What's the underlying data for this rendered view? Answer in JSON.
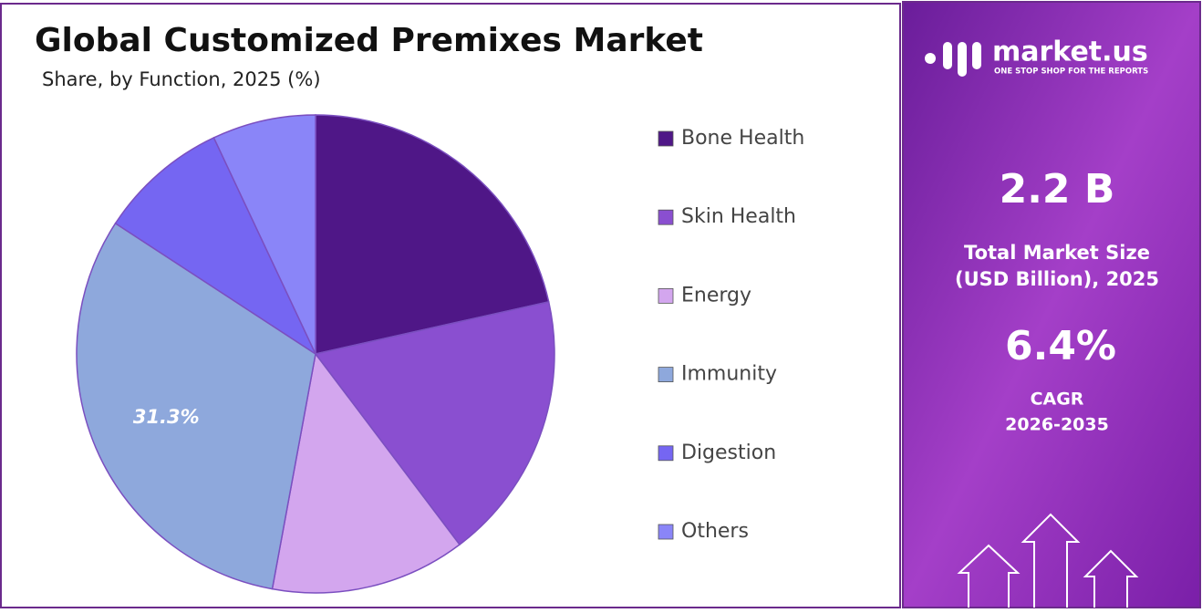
{
  "chart_data": {
    "type": "pie",
    "title": "Global Customized Premixes Market",
    "subtitle": "Share, by Function, 2025 (%)",
    "categories": [
      "Bone Health",
      "Skin Health",
      "Energy",
      "Immunity",
      "Digestion",
      "Others"
    ],
    "values": [
      21.5,
      18.2,
      13.2,
      31.3,
      8.8,
      7.0
    ],
    "value_labels": [
      null,
      null,
      null,
      "31.3%",
      null,
      null
    ],
    "colors": [
      "#4f1787",
      "#8a4fd0",
      "#d3a6ee",
      "#8ea8dc",
      "#7566f2",
      "#8a85f8"
    ],
    "legend": "right"
  },
  "panel": {
    "brand": "market.us",
    "tagline": "ONE STOP SHOP FOR THE REPORTS",
    "market_size": "2.2 B",
    "market_size_label": [
      "Total Market Size",
      "(USD Billion), 2025"
    ],
    "cagr": "6.4%",
    "cagr_label": [
      "CAGR",
      "2026-2035"
    ]
  }
}
